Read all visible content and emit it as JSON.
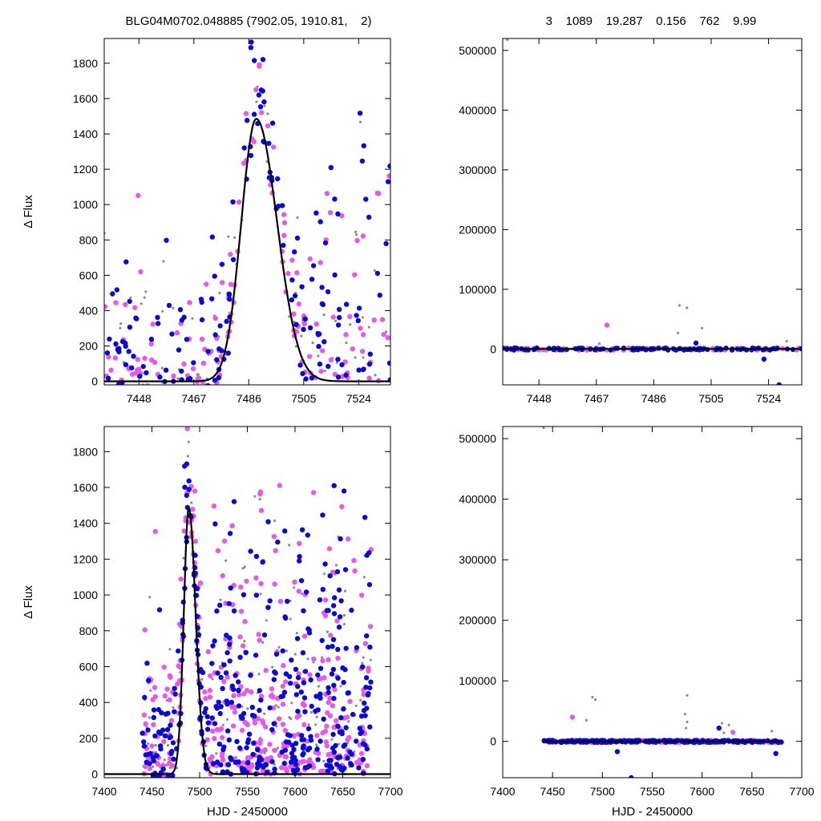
{
  "header": {
    "left_title": "BLG04M0702.048885 (7902.05, 1910.81,    2)",
    "right_title": "3    1089    19.287    0.156    762    9.99"
  },
  "colors": {
    "magenta": "#e65ae6",
    "blue": "#0a0ad2",
    "gray": "#8c8c8c",
    "model": "#000000"
  },
  "chart_data": [
    {
      "id": "top-left",
      "type": "scatter",
      "ylabel": "Δ Flux",
      "xlabel": "",
      "xlim": [
        7436,
        7535
      ],
      "ylim": [
        -20,
        1940
      ],
      "xticks": [
        7448,
        7467,
        7486,
        7505,
        7524
      ],
      "yticks": [
        0,
        200,
        400,
        600,
        800,
        1000,
        1200,
        1400,
        1600,
        1800
      ],
      "model": {
        "t0": 7488.6,
        "peak": 1485,
        "rise": 5.2,
        "decay": 7.2
      },
      "density": {
        "magenta": 150,
        "blue": 170,
        "gray": 70
      },
      "seed": 11
    },
    {
      "id": "top-right",
      "type": "scatter",
      "ylabel": "",
      "xlabel": "",
      "xlim": [
        7436,
        7535
      ],
      "ylim": [
        -60000,
        520000
      ],
      "xticks": [
        7448,
        7467,
        7486,
        7505,
        7524
      ],
      "yticks": [
        0,
        100000,
        200000,
        300000,
        400000,
        500000
      ],
      "outliers": [
        {
          "x": 7437.5,
          "y": 518000,
          "c": "gray"
        },
        {
          "x": 7470.5,
          "y": 40000,
          "c": "magenta"
        },
        {
          "x": 7494.5,
          "y": 73000,
          "c": "gray"
        },
        {
          "x": 7497.0,
          "y": 69000,
          "c": "gray"
        },
        {
          "x": 7502.0,
          "y": 35000,
          "c": "gray"
        },
        {
          "x": 7494.0,
          "y": 27000,
          "c": "gray"
        },
        {
          "x": 7500.0,
          "y": 10000,
          "c": "blue"
        },
        {
          "x": 7522.5,
          "y": -17000,
          "c": "blue"
        },
        {
          "x": 7527.5,
          "y": -60000,
          "c": "blue"
        },
        {
          "x": 7468.0,
          "y": 9000,
          "c": "gray"
        },
        {
          "x": 7530.0,
          "y": 13000,
          "c": "gray"
        }
      ],
      "density": {
        "magenta": 60,
        "blue": 110,
        "gray": 80
      },
      "seed": 23
    },
    {
      "id": "bottom-left",
      "type": "scatter",
      "ylabel": "Δ Flux",
      "xlabel": "HJD - 2450000",
      "xlim": [
        7400,
        7700
      ],
      "ylim": [
        -20,
        1940
      ],
      "xticks": [
        7400,
        7450,
        7500,
        7550,
        7600,
        7650,
        7700
      ],
      "yticks": [
        0,
        200,
        400,
        600,
        800,
        1000,
        1200,
        1400,
        1600,
        1800
      ],
      "model": {
        "t0": 7488.6,
        "peak": 1485,
        "rise": 5.2,
        "decay": 7.2
      },
      "data_range": [
        7440,
        7680
      ],
      "density": {
        "magenta": 380,
        "blue": 420,
        "gray": 170
      },
      "seed": 37
    },
    {
      "id": "bottom-right",
      "type": "scatter",
      "ylabel": "",
      "xlabel": "HJD - 2450000",
      "xlim": [
        7400,
        7700
      ],
      "ylim": [
        -60000,
        520000
      ],
      "xticks": [
        7400,
        7450,
        7500,
        7550,
        7600,
        7650,
        7700
      ],
      "yticks": [
        0,
        100000,
        200000,
        300000,
        400000,
        500000
      ],
      "data_range": [
        7440,
        7680
      ],
      "outliers": [
        {
          "x": 7441,
          "y": 518000,
          "c": "gray"
        },
        {
          "x": 7470,
          "y": 40000,
          "c": "magenta"
        },
        {
          "x": 7490,
          "y": 73000,
          "c": "gray"
        },
        {
          "x": 7493,
          "y": 69000,
          "c": "gray"
        },
        {
          "x": 7484,
          "y": 35000,
          "c": "gray"
        },
        {
          "x": 7585,
          "y": 76000,
          "c": "gray"
        },
        {
          "x": 7583,
          "y": 45000,
          "c": "gray"
        },
        {
          "x": 7585,
          "y": 32000,
          "c": "gray"
        },
        {
          "x": 7584,
          "y": 22000,
          "c": "gray"
        },
        {
          "x": 7617,
          "y": 22000,
          "c": "blue"
        },
        {
          "x": 7620,
          "y": 30000,
          "c": "gray"
        },
        {
          "x": 7627,
          "y": 27000,
          "c": "gray"
        },
        {
          "x": 7631,
          "y": 15000,
          "c": "magenta"
        },
        {
          "x": 7622,
          "y": 14000,
          "c": "gray"
        },
        {
          "x": 7529,
          "y": -60000,
          "c": "blue"
        },
        {
          "x": 7515,
          "y": -17000,
          "c": "blue"
        },
        {
          "x": 7674,
          "y": -20000,
          "c": "blue"
        },
        {
          "x": 7670,
          "y": 17000,
          "c": "gray"
        }
      ],
      "density": {
        "magenta": 130,
        "blue": 230,
        "gray": 150
      },
      "seed": 53
    }
  ]
}
